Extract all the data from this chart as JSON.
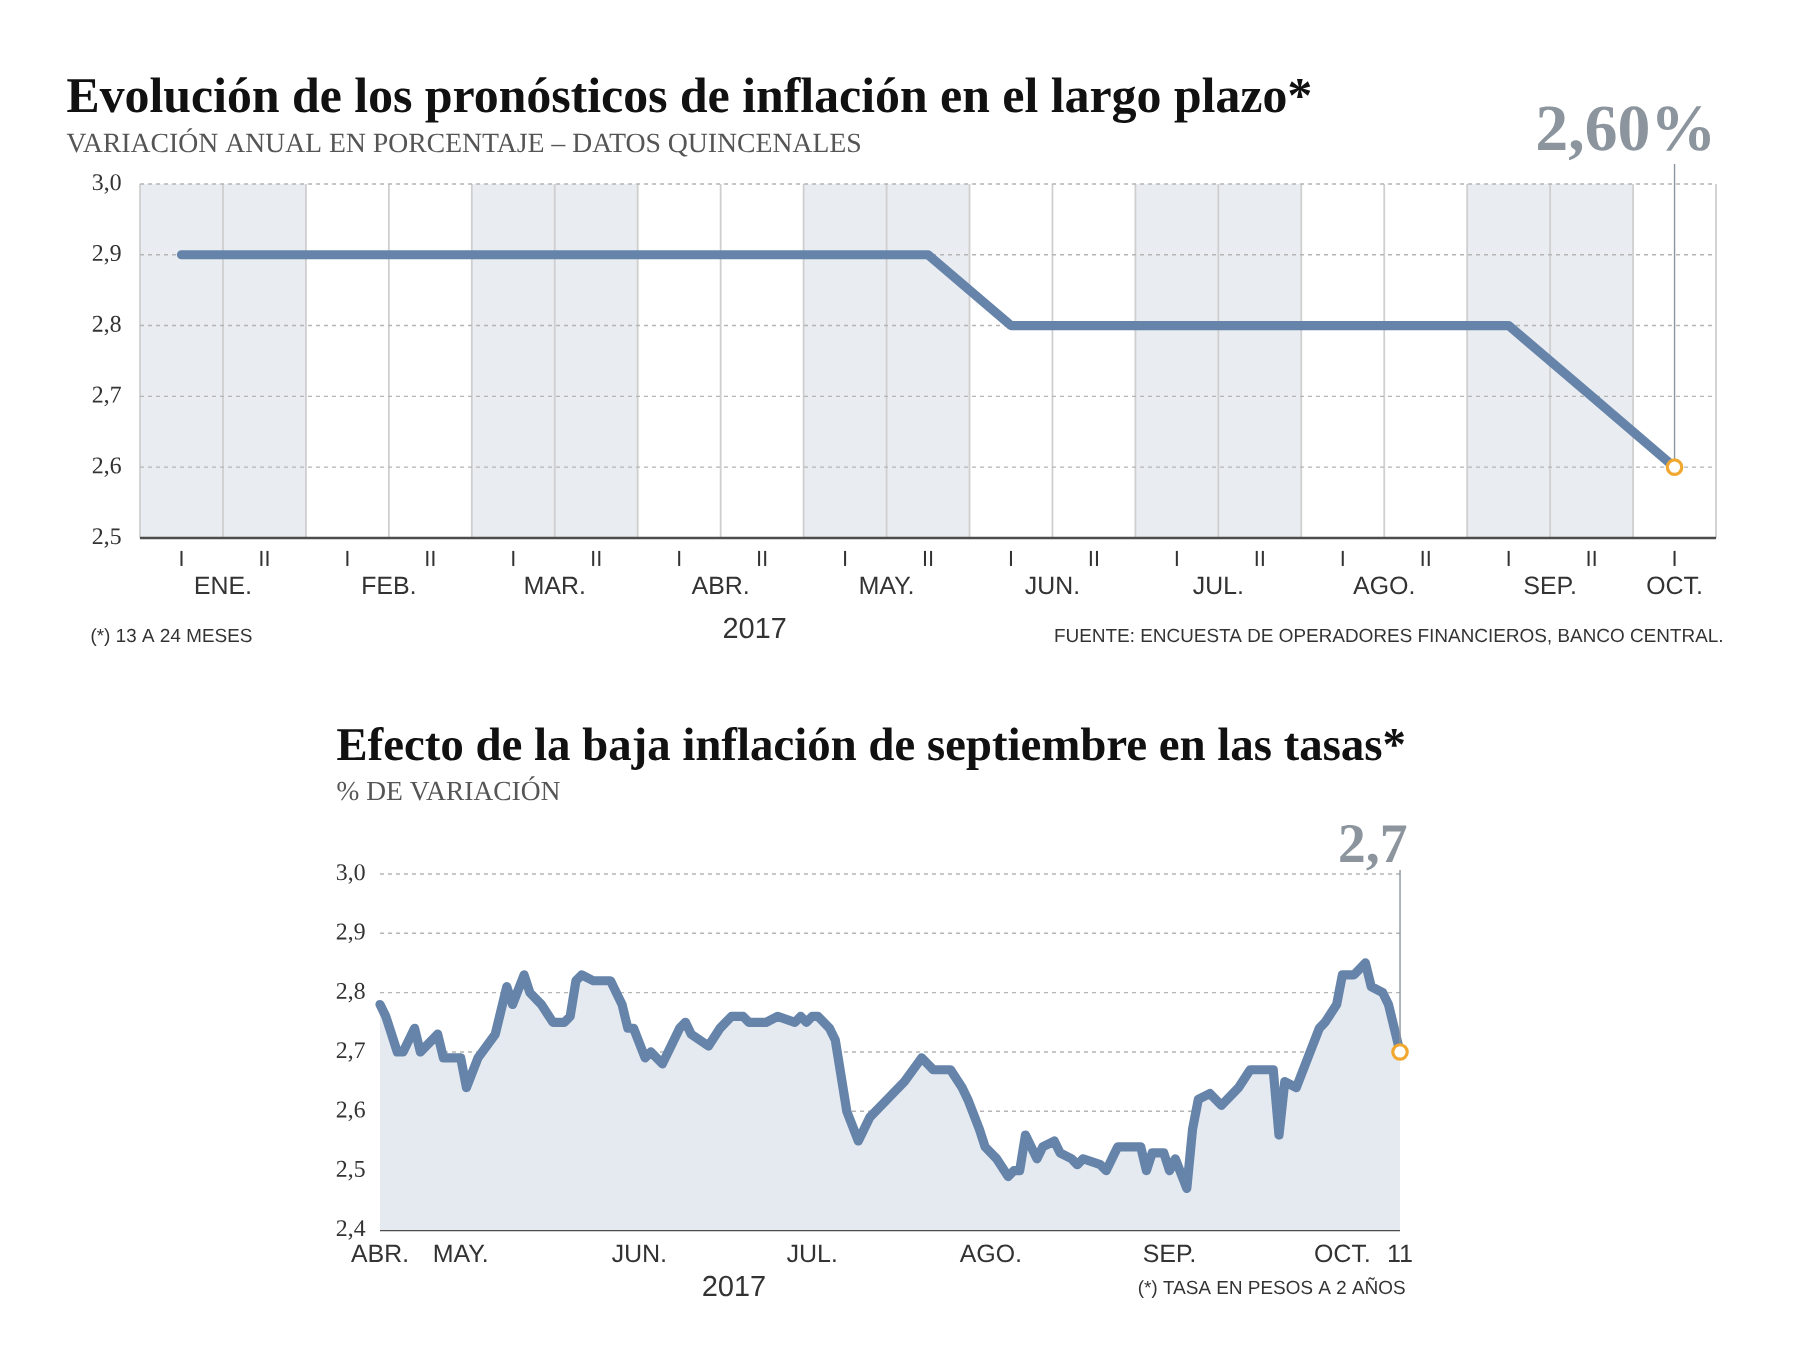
{
  "chart_data": [
    {
      "type": "line",
      "title": "Evolución de los pronósticos de inflación en el largo plazo*",
      "subtitle": "VARIACIÓN ANUAL EN PORCENTAJE – DATOS QUINCENALES",
      "xlabel": "2017",
      "categories": [
        "I",
        "II",
        "I",
        "II",
        "I",
        "II",
        "I",
        "II",
        "I",
        "II",
        "I",
        "II",
        "I",
        "II",
        "I",
        "II",
        "I",
        "II",
        "I"
      ],
      "values": [
        2.9,
        2.9,
        2.9,
        2.9,
        2.9,
        2.9,
        2.9,
        2.9,
        2.9,
        2.9,
        2.8,
        2.8,
        2.8,
        2.8,
        2.8,
        2.8,
        2.8,
        2.7,
        2.6
      ],
      "value_labels": [
        null,
        null,
        null,
        null,
        null,
        null,
        null,
        null,
        null,
        null,
        null,
        null,
        null,
        null,
        null,
        null,
        null,
        null,
        "2,60%"
      ],
      "color": "#6684aa",
      "ylim": [
        2.5,
        3.0
      ],
      "yticks": [
        {
          "value": 2.5,
          "label": "2,5"
        },
        {
          "value": 2.6,
          "label": "2,6"
        },
        {
          "value": 2.7,
          "label": "2,7"
        },
        {
          "value": 2.8,
          "label": "2,8"
        },
        {
          "value": 2.9,
          "label": "2,9"
        },
        {
          "value": 3.0,
          "label": "3,0"
        }
      ],
      "grid": true,
      "annotations": [
        "ENE.",
        "FEB.",
        "MAR.",
        "ABR.",
        "MAY.",
        "JUN.",
        "JUL.",
        "AGO.",
        "SEP.",
        "OCT.",
        "(*) 13 A 24 MESES",
        "FUENTE: ENCUESTA DE OPERADORES FINANCIEROS, BANCO CENTRAL."
      ]
    },
    {
      "type": "area",
      "title": "Efecto de la baja inflación de septiembre en las tasas*",
      "subtitle": "% DE VARIACIÓN",
      "xlabel": "2017",
      "x": [
        "2017-04-17",
        "2017-04-18",
        "2017-04-20",
        "2017-04-21",
        "2017-04-23",
        "2017-04-24",
        "2017-04-27",
        "2017-04-28",
        "2017-05-01",
        "2017-05-02",
        "2017-05-04",
        "2017-05-07",
        "2017-05-09",
        "2017-05-10",
        "2017-05-12",
        "2017-05-13",
        "2017-05-15",
        "2017-05-17",
        "2017-05-19",
        "2017-05-20",
        "2017-05-21",
        "2017-05-22",
        "2017-05-24",
        "2017-05-27",
        "2017-05-29",
        "2017-05-30",
        "2017-05-31",
        "2017-06-02",
        "2017-06-03",
        "2017-06-05",
        "2017-06-06",
        "2017-06-08",
        "2017-06-09",
        "2017-06-10",
        "2017-06-13",
        "2017-06-15",
        "2017-06-16",
        "2017-06-17",
        "2017-06-19",
        "2017-06-20",
        "2017-06-23",
        "2017-06-25",
        "2017-06-28",
        "2017-06-29",
        "2017-06-30",
        "2017-07-01",
        "2017-07-02",
        "2017-07-04",
        "2017-07-05",
        "2017-07-07",
        "2017-07-09",
        "2017-07-11",
        "2017-07-13",
        "2017-07-15",
        "2017-07-17",
        "2017-07-20",
        "2017-07-22",
        "2017-07-25",
        "2017-07-27",
        "2017-07-28",
        "2017-07-30",
        "2017-07-31",
        "2017-08-02",
        "2017-08-04",
        "2017-08-05",
        "2017-08-06",
        "2017-08-07",
        "2017-08-09",
        "2017-08-10",
        "2017-08-12",
        "2017-08-13",
        "2017-08-15",
        "2017-08-16",
        "2017-08-17",
        "2017-08-20",
        "2017-08-21",
        "2017-08-22",
        "2017-08-23",
        "2017-08-25",
        "2017-08-27",
        "2017-08-28",
        "2017-08-29",
        "2017-08-31",
        "2017-09-01",
        "2017-09-02",
        "2017-09-04",
        "2017-09-05",
        "2017-09-06",
        "2017-09-08",
        "2017-09-10",
        "2017-09-12",
        "2017-09-13",
        "2017-09-15",
        "2017-09-17",
        "2017-09-19",
        "2017-09-20",
        "2017-09-21",
        "2017-09-23",
        "2017-09-25",
        "2017-09-27",
        "2017-09-28",
        "2017-09-30",
        "2017-10-01",
        "2017-10-03",
        "2017-10-05",
        "2017-10-06",
        "2017-10-08",
        "2017-10-09",
        "2017-10-11"
      ],
      "values": [
        2.78,
        2.76,
        2.7,
        2.7,
        2.74,
        2.7,
        2.73,
        2.69,
        2.69,
        2.64,
        2.69,
        2.73,
        2.81,
        2.78,
        2.83,
        2.8,
        2.78,
        2.75,
        2.75,
        2.76,
        2.82,
        2.83,
        2.82,
        2.82,
        2.78,
        2.74,
        2.74,
        2.69,
        2.7,
        2.68,
        2.7,
        2.74,
        2.75,
        2.73,
        2.71,
        2.74,
        2.75,
        2.76,
        2.76,
        2.75,
        2.75,
        2.76,
        2.75,
        2.76,
        2.75,
        2.76,
        2.76,
        2.74,
        2.72,
        2.6,
        2.55,
        2.59,
        2.61,
        2.63,
        2.65,
        2.69,
        2.67,
        2.67,
        2.64,
        2.62,
        2.57,
        2.54,
        2.52,
        2.49,
        2.5,
        2.5,
        2.56,
        2.52,
        2.54,
        2.55,
        2.53,
        2.52,
        2.51,
        2.52,
        2.51,
        2.5,
        2.52,
        2.54,
        2.54,
        2.54,
        2.5,
        2.53,
        2.53,
        2.5,
        2.52,
        2.47,
        2.57,
        2.62,
        2.63,
        2.61,
        2.63,
        2.64,
        2.67,
        2.67,
        2.67,
        2.56,
        2.65,
        2.64,
        2.69,
        2.74,
        2.75,
        2.78,
        2.83,
        2.83,
        2.85,
        2.81,
        2.8,
        2.78,
        2.7
      ],
      "color": "#6684aa",
      "xlim": [
        "2017-04-17",
        "2017-10-11"
      ],
      "xticks": [
        {
          "value": "2017-04-17",
          "label": "ABR."
        },
        {
          "value": "2017-05-01",
          "label": "MAY."
        },
        {
          "value": "2017-06-01",
          "label": "JUN."
        },
        {
          "value": "2017-07-01",
          "label": "JUL."
        },
        {
          "value": "2017-08-01",
          "label": "AGO."
        },
        {
          "value": "2017-09-01",
          "label": "SEP."
        },
        {
          "value": "2017-10-01",
          "label": "OCT."
        },
        {
          "value": "2017-10-11",
          "label": "11"
        }
      ],
      "ylim": [
        2.4,
        3.0
      ],
      "yticks": [
        {
          "value": 2.4,
          "label": "2,4"
        },
        {
          "value": 2.5,
          "label": "2,5"
        },
        {
          "value": 2.6,
          "label": "2,6"
        },
        {
          "value": 2.7,
          "label": "2,7"
        },
        {
          "value": 2.8,
          "label": "2,8"
        },
        {
          "value": 2.9,
          "label": "2,9"
        },
        {
          "value": 3.0,
          "label": "3,0"
        }
      ],
      "grid": "y",
      "annotations": [
        "(*) TASA EN PESOS A 2 AÑOS",
        {
          "text": "2,7",
          "x": "2017-10-11",
          "y": 2.7
        }
      ]
    }
  ]
}
